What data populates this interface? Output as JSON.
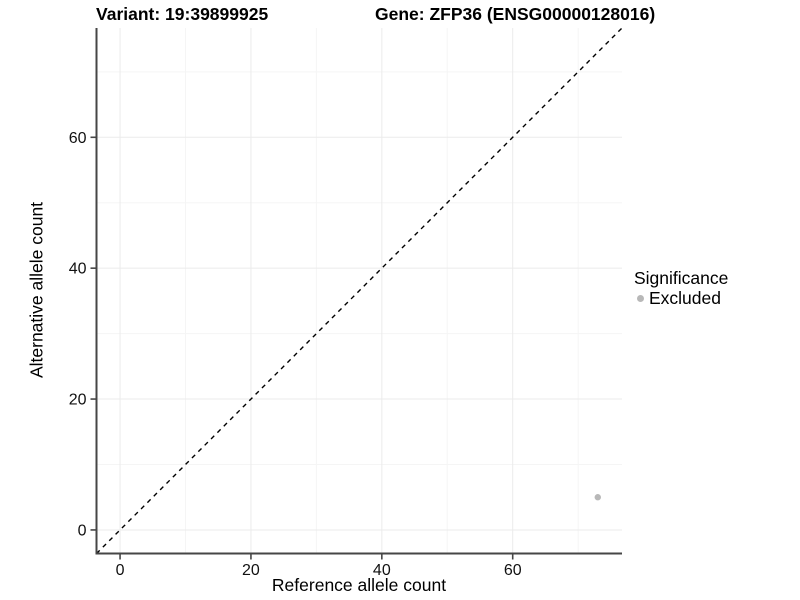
{
  "header": {
    "variant_title": "Variant: 19:39899925",
    "gene_title": "Gene: ZFP36 (ENSG00000128016)"
  },
  "legend": {
    "title": "Significance",
    "items": [
      {
        "label": "Excluded",
        "color": "#b8b8b8"
      }
    ]
  },
  "chart_data": {
    "type": "scatter",
    "xlabel": "Reference allele count",
    "ylabel": "Alternative allele count",
    "xlim": [
      -3.6,
      76.7
    ],
    "ylim": [
      -3.6,
      76.7
    ],
    "xticks": [
      0,
      20,
      40,
      60
    ],
    "yticks": [
      0,
      20,
      40,
      60
    ],
    "xminor": [
      10,
      30,
      50,
      70
    ],
    "yminor": [
      10,
      30,
      50,
      70
    ],
    "grid": true,
    "legend_position": "right",
    "identity_line": {
      "slope": 1,
      "intercept": 0,
      "style": "dashed",
      "color": "#000000"
    },
    "series": [
      {
        "name": "Excluded",
        "color": "#b8b8b8",
        "points": [
          {
            "x": 73,
            "y": 5
          }
        ]
      }
    ]
  },
  "colors": {
    "background": "#ffffff",
    "axis": "#464646",
    "grid_major": "#ebebeb",
    "grid_minor": "#f5f5f5",
    "tick_text": "#111111",
    "point": "#b8b8b8"
  }
}
